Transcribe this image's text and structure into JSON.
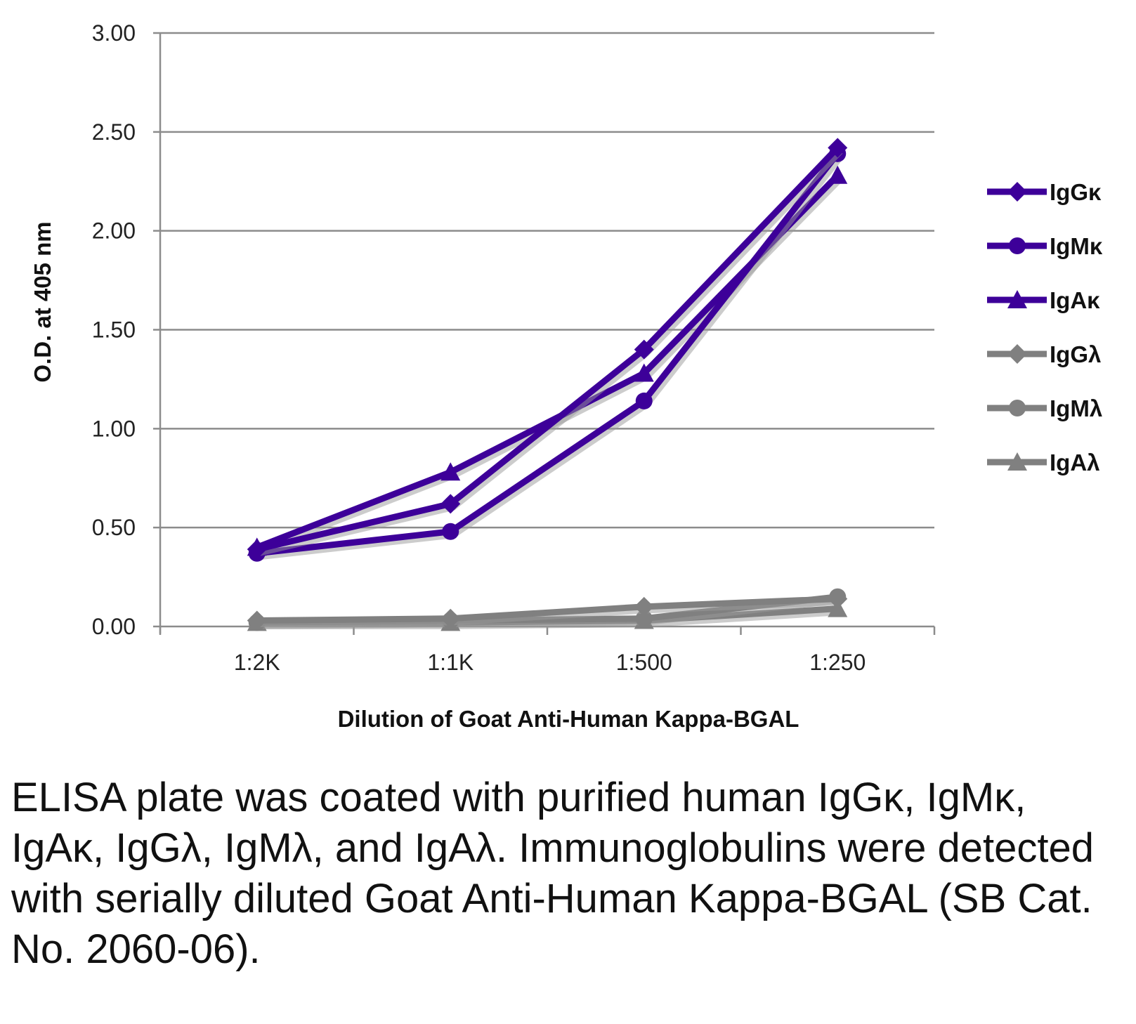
{
  "chart_data": {
    "type": "line",
    "title": "",
    "xlabel": "Dilution of Goat Anti-Human Kappa-BGAL",
    "ylabel": "O.D. at 405 nm",
    "categories": [
      "1:2K",
      "1:1K",
      "1:500",
      "1:250"
    ],
    "ylim": [
      0,
      3
    ],
    "yticks": [
      "0.00",
      "0.50",
      "1.00",
      "1.50",
      "2.00",
      "2.50",
      "3.00"
    ],
    "grid": true,
    "legend_position": "right",
    "series": [
      {
        "name": "IgGκ",
        "marker": "diamond",
        "color": "#3d0099",
        "values": [
          0.39,
          0.62,
          1.4,
          2.42
        ]
      },
      {
        "name": "IgMκ",
        "marker": "circle",
        "color": "#3d0099",
        "values": [
          0.37,
          0.48,
          1.14,
          2.39
        ]
      },
      {
        "name": "IgAκ",
        "marker": "triangle",
        "color": "#3d0099",
        "values": [
          0.4,
          0.78,
          1.28,
          2.28
        ]
      },
      {
        "name": "IgGλ",
        "marker": "diamond",
        "color": "#808080",
        "values": [
          0.03,
          0.04,
          0.1,
          0.14
        ]
      },
      {
        "name": "IgMλ",
        "marker": "circle",
        "color": "#808080",
        "values": [
          0.02,
          0.03,
          0.04,
          0.15
        ]
      },
      {
        "name": "IgAλ",
        "marker": "triangle",
        "color": "#808080",
        "values": [
          0.02,
          0.02,
          0.03,
          0.09
        ]
      }
    ]
  },
  "caption": "ELISA plate was coated with purified human IgGκ, IgMκ, IgAκ, IgGλ, IgMλ, and IgAλ. Immunoglobulins were detected with serially diluted Goat Anti-Human Kappa-BGAL (SB Cat. No. 2060-06)."
}
